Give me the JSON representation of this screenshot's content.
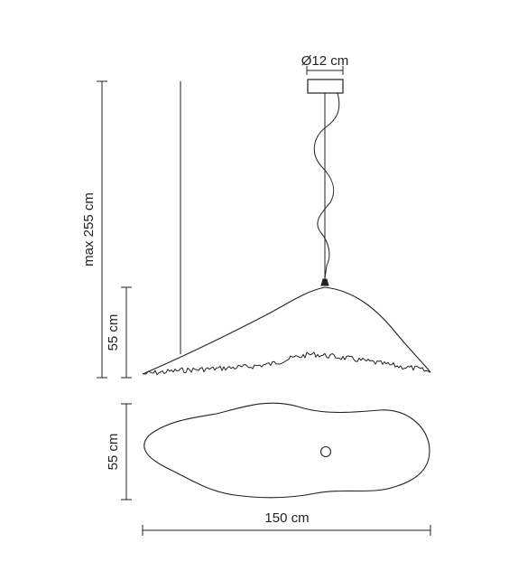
{
  "dimensions": {
    "canopy_diameter": "Ø12 cm",
    "max_height": "max 255 cm",
    "shade_height": "55 cm",
    "plan_depth": "55 cm",
    "width": "150 cm"
  },
  "colors": {
    "line": "#222222",
    "background": "#ffffff"
  }
}
